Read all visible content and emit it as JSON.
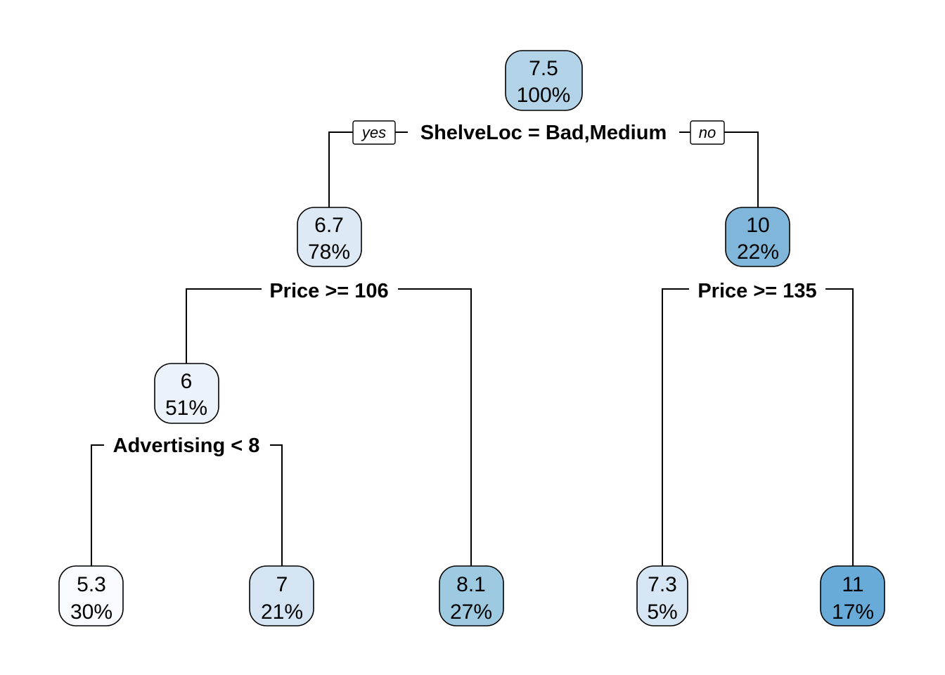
{
  "tree": {
    "nodes": [
      {
        "id": "root",
        "value": "7.5",
        "pct": "100%",
        "color": "#b2d3e8"
      },
      {
        "id": "n_bm",
        "value": "6.7",
        "pct": "78%",
        "color": "#dde9f5"
      },
      {
        "id": "n_good",
        "value": "10",
        "pct": "22%",
        "color": "#7fb6d9"
      },
      {
        "id": "n_p106",
        "value": "6",
        "pct": "51%",
        "color": "#ebf2fa"
      },
      {
        "id": "leaf1",
        "value": "5.3",
        "pct": "30%",
        "color": "#f7fbff"
      },
      {
        "id": "leaf2",
        "value": "7",
        "pct": "21%",
        "color": "#d4e4f3"
      },
      {
        "id": "leaf3",
        "value": "8.1",
        "pct": "27%",
        "color": "#9ecae1"
      },
      {
        "id": "leaf4",
        "value": "7.3",
        "pct": "5%",
        "color": "#d6e6f4"
      },
      {
        "id": "leaf5",
        "value": "11",
        "pct": "17%",
        "color": "#68aad8"
      }
    ],
    "splits": {
      "root": "ShelveLoc = Bad,Medium",
      "n_bm": "Price >= 106",
      "n_good": "Price >= 135",
      "n_p106": "Advertising < 8"
    },
    "branch_tags": {
      "yes": "yes",
      "no": "no"
    }
  }
}
